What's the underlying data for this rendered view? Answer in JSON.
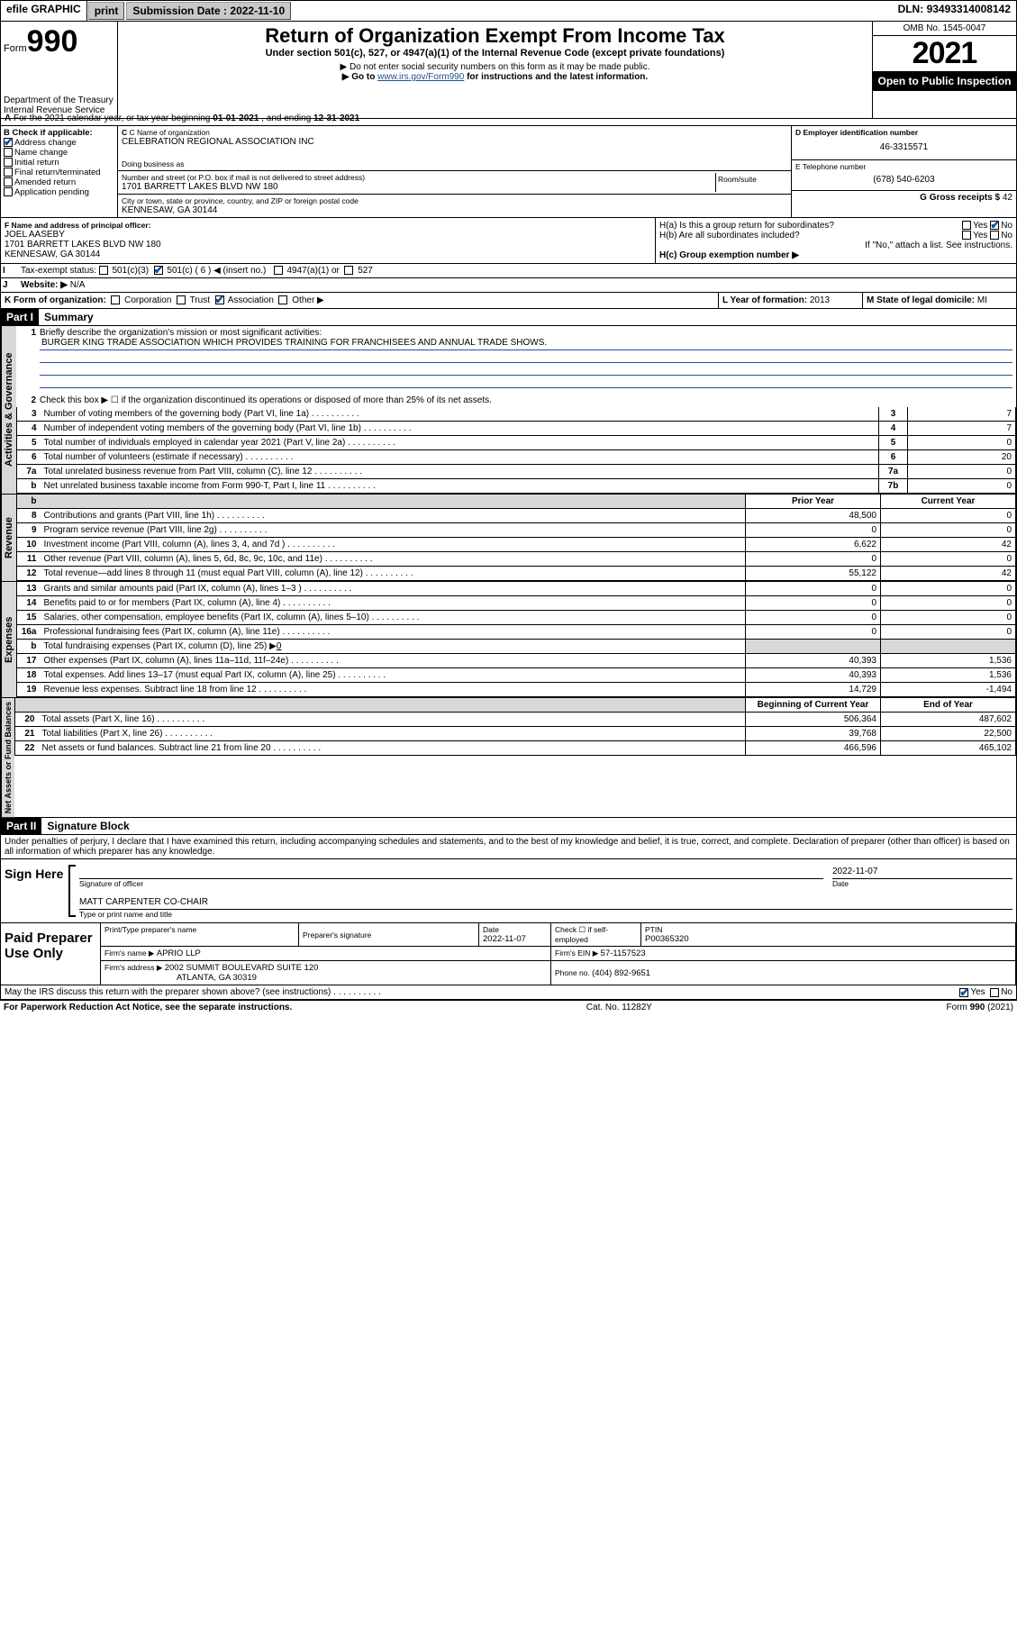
{
  "topbar": {
    "efile": "efile GRAPHIC",
    "print": "print",
    "sub_label": "Submission Date : ",
    "sub_date": "2022-11-10",
    "dln_label": "DLN: ",
    "dln": "93493314008142"
  },
  "header": {
    "form": "Form",
    "form_no": "990",
    "dept": "Department of the Treasury",
    "irs": "Internal Revenue Service",
    "title": "Return of Organization Exempt From Income Tax",
    "subtitle": "Under section 501(c), 527, or 4947(a)(1) of the Internal Revenue Code (except private foundations)",
    "note1": "▶ Do not enter social security numbers on this form as it may be made public.",
    "note2_pre": "▶ Go to ",
    "note2_link": "www.irs.gov/Form990",
    "note2_post": " for instructions and the latest information.",
    "omb": "OMB No. 1545-0047",
    "year": "2021",
    "open": "Open to Public Inspection"
  },
  "a_line": {
    "a": "A",
    "text": " For the 2021 calendar year, or tax year beginning ",
    "begin": "01-01-2021",
    "mid": "  , and ending ",
    "end": "12-31-2021"
  },
  "section_b": {
    "b_label": "B Check if applicable:",
    "opts": [
      "Address change",
      "Name change",
      "Initial return",
      "Final return/terminated",
      "Amended return",
      "Application pending"
    ],
    "checked_idx": 0,
    "c_label": "C Name of organization",
    "org_name": "CELEBRATION REGIONAL ASSOCIATION INC",
    "dba_label": "Doing business as",
    "addr_label": "Number and street (or P.O. box if mail is not delivered to street address)",
    "room": "Room/suite",
    "addr": "1701 BARRETT LAKES BLVD NW 180",
    "city_label": "City or town, state or province, country, and ZIP or foreign postal code",
    "city": "KENNESAW, GA  30144",
    "d_label": "D Employer identification number",
    "ein": "46-3315571",
    "e_label": "E Telephone number",
    "phone": "(678) 540-6203",
    "g_label": "G Gross receipts $ ",
    "g_val": "42",
    "f_label": "F  Name and address of principal officer:",
    "officer_name": "JOEL AASEBY",
    "officer_addr1": "1701 BARRETT LAKES BLVD NW 180",
    "officer_addr2": "KENNESAW, GA  30144",
    "h_a": "H(a)  Is this a group return for subordinates?",
    "h_b": "H(b)  Are all subordinates included?",
    "h_note": "If \"No,\" attach a list. See instructions.",
    "h_c": "H(c)  Group exemption number ▶",
    "yes": "Yes",
    "no": "No",
    "i_label": "Tax-exempt status:",
    "i_501c3": "501(c)(3)",
    "i_501c": "501(c) ( 6 ) ◀ (insert no.)",
    "i_4947": "4947(a)(1) or",
    "i_527": "527",
    "j_label": "Website: ▶",
    "j_val": "N/A",
    "k_label": "K Form of organization:",
    "k_opts": [
      "Corporation",
      "Trust",
      "Association",
      "Other ▶"
    ],
    "k_checked_idx": 2,
    "l_label": "L Year of formation: ",
    "l_val": "2013",
    "m_label": "M State of legal domicile: ",
    "m_val": "MI",
    "i_letter": "I",
    "j_letter": "J"
  },
  "part1": {
    "header": "Part I",
    "title": "Summary",
    "line1_num": "1",
    "line1": "Briefly describe the organization's mission or most significant activities:",
    "mission": "BURGER KING TRADE ASSOCIATION WHICH PROVIDES TRAINING FOR FRANCHISEES AND ANNUAL TRADE SHOWS.",
    "line2_num": "2",
    "line2": "Check this box ▶ ☐  if the organization discontinued its operations or disposed of more than 25% of its net assets.",
    "vlabel_gov": "Activities & Governance",
    "vlabel_rev": "Revenue",
    "vlabel_exp": "Expenses",
    "vlabel_net": "Net Assets or Fund Balances",
    "gov_rows": [
      {
        "n": "3",
        "d": "Number of voting members of the governing body (Part VI, line 1a)",
        "box": "3",
        "v": "7"
      },
      {
        "n": "4",
        "d": "Number of independent voting members of the governing body (Part VI, line 1b)",
        "box": "4",
        "v": "7"
      },
      {
        "n": "5",
        "d": "Total number of individuals employed in calendar year 2021 (Part V, line 2a)",
        "box": "5",
        "v": "0"
      },
      {
        "n": "6",
        "d": "Total number of volunteers (estimate if necessary)",
        "box": "6",
        "v": "20"
      },
      {
        "n": "7a",
        "d": "Total unrelated business revenue from Part VIII, column (C), line 12",
        "box": "7a",
        "v": "0"
      },
      {
        "n": "b",
        "d": "Net unrelated business taxable income from Form 990-T, Part I, line 11",
        "box": "7b",
        "v": "0"
      }
    ],
    "col_prior": "Prior Year",
    "col_current": "Current Year",
    "col_boy": "Beginning of Current Year",
    "col_eoy": "End of Year",
    "rev_rows": [
      {
        "n": "8",
        "d": "Contributions and grants (Part VIII, line 1h)",
        "p": "48,500",
        "c": "0"
      },
      {
        "n": "9",
        "d": "Program service revenue (Part VIII, line 2g)",
        "p": "0",
        "c": "0"
      },
      {
        "n": "10",
        "d": "Investment income (Part VIII, column (A), lines 3, 4, and 7d )",
        "p": "6,622",
        "c": "42"
      },
      {
        "n": "11",
        "d": "Other revenue (Part VIII, column (A), lines 5, 6d, 8c, 9c, 10c, and 11e)",
        "p": "0",
        "c": "0"
      },
      {
        "n": "12",
        "d": "Total revenue—add lines 8 through 11 (must equal Part VIII, column (A), line 12)",
        "p": "55,122",
        "c": "42"
      }
    ],
    "exp_rows": [
      {
        "n": "13",
        "d": "Grants and similar amounts paid (Part IX, column (A), lines 1–3 )",
        "p": "0",
        "c": "0"
      },
      {
        "n": "14",
        "d": "Benefits paid to or for members (Part IX, column (A), line 4)",
        "p": "0",
        "c": "0"
      },
      {
        "n": "15",
        "d": "Salaries, other compensation, employee benefits (Part IX, column (A), lines 5–10)",
        "p": "0",
        "c": "0"
      },
      {
        "n": "16a",
        "d": "Professional fundraising fees (Part IX, column (A), line 11e)",
        "p": "0",
        "c": "0"
      }
    ],
    "exp_16b_n": "b",
    "exp_16b": "Total fundraising expenses (Part IX, column (D), line 25) ▶",
    "exp_16b_val": "0",
    "exp_rows2": [
      {
        "n": "17",
        "d": "Other expenses (Part IX, column (A), lines 11a–11d, 11f–24e)",
        "p": "40,393",
        "c": "1,536"
      },
      {
        "n": "18",
        "d": "Total expenses. Add lines 13–17 (must equal Part IX, column (A), line 25)",
        "p": "40,393",
        "c": "1,536"
      },
      {
        "n": "19",
        "d": "Revenue less expenses. Subtract line 18 from line 12",
        "p": "14,729",
        "c": "-1,494"
      }
    ],
    "net_rows": [
      {
        "n": "20",
        "d": "Total assets (Part X, line 16)",
        "p": "506,364",
        "c": "487,602"
      },
      {
        "n": "21",
        "d": "Total liabilities (Part X, line 26)",
        "p": "39,768",
        "c": "22,500"
      },
      {
        "n": "22",
        "d": "Net assets or fund balances. Subtract line 21 from line 20",
        "p": "466,596",
        "c": "465,102"
      }
    ]
  },
  "part2": {
    "header": "Part II",
    "title": "Signature Block",
    "decl": "Under penalties of perjury, I declare that I have examined this return, including accompanying schedules and statements, and to the best of my knowledge and belief, it is true, correct, and complete. Declaration of preparer (other than officer) is based on all information of which preparer has any knowledge.",
    "sign_here": "Sign Here",
    "sig_officer": "Signature of officer",
    "sig_date": "Date",
    "sig_date_val": "2022-11-07",
    "typed_name": "MATT CARPENTER  CO-CHAIR",
    "typed_label": "Type or print name and title",
    "paid": "Paid Preparer Use Only",
    "prep_name_label": "Print/Type preparer's name",
    "prep_sig_label": "Preparer's signature",
    "prep_date_label": "Date",
    "prep_date": "2022-11-07",
    "prep_check": "Check ☐ if self-employed",
    "ptin_label": "PTIN",
    "ptin": "P00365320",
    "firm_name_label": "Firm's name      ▶ ",
    "firm_name": "APRIO LLP",
    "firm_ein_label": "Firm's EIN ▶ ",
    "firm_ein": "57-1157523",
    "firm_addr_label": "Firm's address ▶ ",
    "firm_addr1": "2002 SUMMIT BOULEVARD SUITE 120",
    "firm_addr2": "ATLANTA, GA  30319",
    "firm_phone_label": "Phone no. ",
    "firm_phone": "(404) 892-9651",
    "discuss": "May the IRS discuss this return with the preparer shown above? (see instructions)",
    "paperwork": "For Paperwork Reduction Act Notice, see the separate instructions.",
    "cat": "Cat. No. 11282Y",
    "form_foot": "Form 990 (2021)"
  },
  "colors": {
    "link": "#205090",
    "checked": "#1050a0",
    "shade": "#d8d8d8",
    "btn": "#c8c8c8"
  }
}
